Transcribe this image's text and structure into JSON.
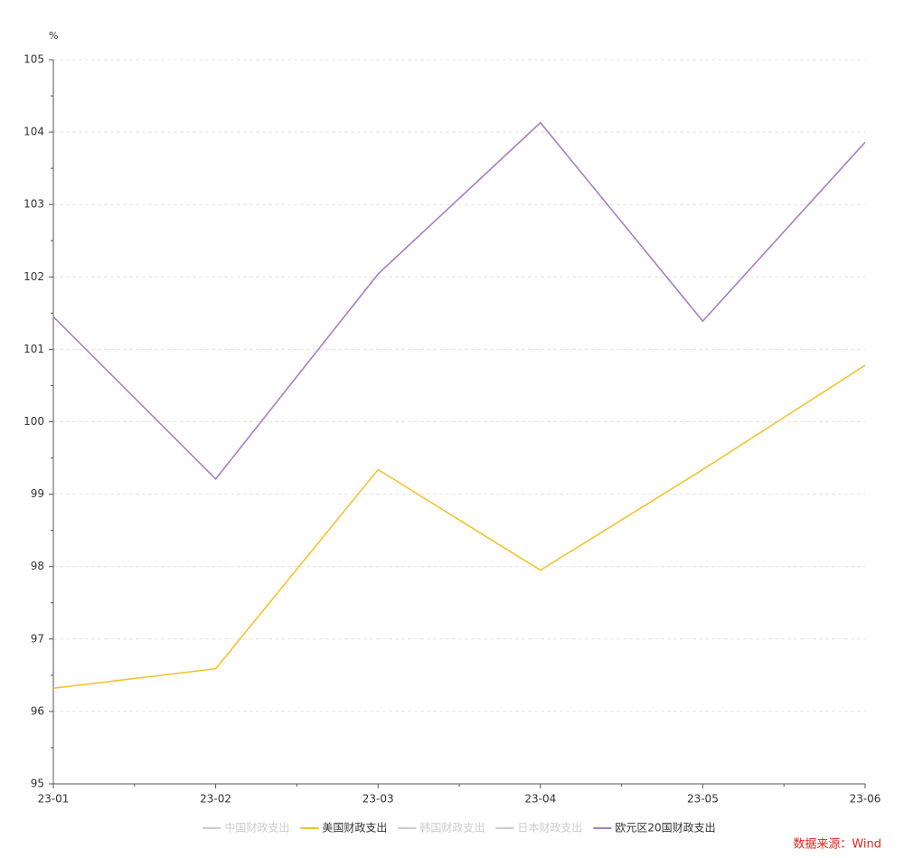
{
  "chart_data": {
    "type": "line",
    "y_unit": "%",
    "categories": [
      "23-01",
      "23-02",
      "23-03",
      "23-04",
      "23-05",
      "23-06"
    ],
    "series": [
      {
        "name": "中国财政支出",
        "color": "#cccccc",
        "visible": false,
        "values": [
          null,
          null,
          null,
          null,
          null,
          null
        ]
      },
      {
        "name": "美国财政支出",
        "color": "#f5c22e",
        "visible": true,
        "values": [
          96.32,
          96.59,
          99.34,
          97.95,
          99.34,
          100.78
        ]
      },
      {
        "name": "韩国财政支出",
        "color": "#cccccc",
        "visible": false,
        "values": [
          null,
          null,
          null,
          null,
          null,
          null
        ]
      },
      {
        "name": "日本财政支出",
        "color": "#cccccc",
        "visible": false,
        "values": [
          null,
          null,
          null,
          null,
          null,
          null
        ]
      },
      {
        "name": "欧元区20国财政支出",
        "color": "#a57fc6",
        "visible": true,
        "values": [
          101.45,
          99.21,
          102.04,
          104.13,
          101.39,
          103.86
        ]
      }
    ],
    "ylim": [
      95,
      105
    ],
    "yticks": [
      95,
      96,
      97,
      98,
      99,
      100,
      101,
      102,
      103,
      104,
      105
    ],
    "grid": true,
    "legend": "bottom",
    "source": "数据来源：Wind"
  }
}
